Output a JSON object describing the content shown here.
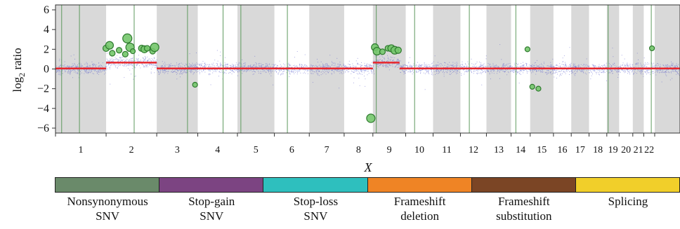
{
  "chart_data": {
    "type": "scatter",
    "title": "",
    "xlabel": "X",
    "ylabel_main": "log",
    "ylabel_sub": "2",
    "ylabel_tail": " ratio",
    "ylim": [
      -6.5,
      6.5
    ],
    "yticks": [
      6,
      4,
      2,
      0,
      -2,
      -4,
      -6
    ],
    "ytick_labels": [
      "6",
      "4",
      "2",
      "0",
      "−2",
      "−4",
      "−6"
    ],
    "chromosomes": [
      {
        "label": "1",
        "start": 0,
        "end": 7.4,
        "shaded": true
      },
      {
        "label": "2",
        "start": 7.4,
        "end": 14.8,
        "shaded": false
      },
      {
        "label": "3",
        "start": 14.8,
        "end": 20.8,
        "shaded": true
      },
      {
        "label": "4",
        "start": 20.8,
        "end": 26.6,
        "shaded": false
      },
      {
        "label": "5",
        "start": 26.6,
        "end": 32.0,
        "shaded": true
      },
      {
        "label": "6",
        "start": 32.0,
        "end": 37.1,
        "shaded": false
      },
      {
        "label": "7",
        "start": 37.1,
        "end": 42.2,
        "shaded": true
      },
      {
        "label": "8",
        "start": 42.2,
        "end": 46.4,
        "shaded": false
      },
      {
        "label": "9",
        "start": 46.4,
        "end": 51.2,
        "shaded": true
      },
      {
        "label": "10",
        "start": 51.2,
        "end": 55.2,
        "shaded": false
      },
      {
        "label": "11",
        "start": 55.2,
        "end": 59.2,
        "shaded": true
      },
      {
        "label": "12",
        "start": 59.2,
        "end": 63.0,
        "shaded": false
      },
      {
        "label": "13",
        "start": 63.0,
        "end": 66.6,
        "shaded": true
      },
      {
        "label": "14",
        "start": 66.6,
        "end": 69.4,
        "shaded": false
      },
      {
        "label": "15",
        "start": 69.4,
        "end": 72.8,
        "shaded": true
      },
      {
        "label": "16",
        "start": 72.8,
        "end": 75.4,
        "shaded": false
      },
      {
        "label": "17",
        "start": 75.4,
        "end": 78.0,
        "shaded": true
      },
      {
        "label": "18",
        "start": 78.0,
        "end": 80.6,
        "shaded": false
      },
      {
        "label": "19",
        "start": 80.6,
        "end": 82.4,
        "shaded": true
      },
      {
        "label": "20",
        "start": 82.4,
        "end": 84.4,
        "shaded": false
      },
      {
        "label": "21",
        "start": 84.4,
        "end": 86.0,
        "shaded": true
      },
      {
        "label": "22",
        "start": 86.0,
        "end": 87.6,
        "shaded": false
      },
      {
        "label": "",
        "start": 87.6,
        "end": 91.3,
        "shaded": true
      }
    ],
    "segments": [
      {
        "x0": 0,
        "x1": 7.4,
        "y": 0.05
      },
      {
        "x0": 7.4,
        "x1": 14.8,
        "y": 0.65
      },
      {
        "x0": 14.8,
        "x1": 46.4,
        "y": 0.05
      },
      {
        "x0": 46.4,
        "x1": 50.3,
        "y": 0.65
      },
      {
        "x0": 50.3,
        "x1": 91.3,
        "y": 0.05
      }
    ],
    "breakpoints": [
      0.9,
      3.5,
      11.5,
      19.3,
      24.5,
      27.1,
      33.9,
      46.9,
      52.5,
      60.5,
      67.3,
      80.8,
      87.1
    ],
    "variants": [
      {
        "x": 7.4,
        "y": 2.1,
        "size": 4.5
      },
      {
        "x": 7.9,
        "y": 2.4,
        "size": 5.5
      },
      {
        "x": 8.3,
        "y": 1.6,
        "size": 4
      },
      {
        "x": 9.3,
        "y": 1.9,
        "size": 4
      },
      {
        "x": 10.5,
        "y": 3.1,
        "size": 6.5
      },
      {
        "x": 10.9,
        "y": 2.2,
        "size": 6
      },
      {
        "x": 10.2,
        "y": 1.5,
        "size": 4
      },
      {
        "x": 11.3,
        "y": 1.8,
        "size": 3.5
      },
      {
        "x": 12.6,
        "y": 2.1,
        "size": 4.5
      },
      {
        "x": 13.0,
        "y": 2.0,
        "size": 5
      },
      {
        "x": 13.4,
        "y": 2.1,
        "size": 4
      },
      {
        "x": 14.2,
        "y": 1.8,
        "size": 4
      },
      {
        "x": 14.5,
        "y": 2.2,
        "size": 6
      },
      {
        "x": 20.4,
        "y": -1.6,
        "size": 3.5
      },
      {
        "x": 46.1,
        "y": -5.0,
        "size": 6
      },
      {
        "x": 46.7,
        "y": 2.2,
        "size": 5
      },
      {
        "x": 47.0,
        "y": 1.8,
        "size": 5.5
      },
      {
        "x": 47.8,
        "y": 1.75,
        "size": 4
      },
      {
        "x": 48.6,
        "y": 2.1,
        "size": 4
      },
      {
        "x": 49.1,
        "y": 2.1,
        "size": 5
      },
      {
        "x": 49.6,
        "y": 1.9,
        "size": 5.5
      },
      {
        "x": 50.1,
        "y": 1.9,
        "size": 4.5
      },
      {
        "x": 69.0,
        "y": 2.0,
        "size": 3.5
      },
      {
        "x": 69.7,
        "y": -1.8,
        "size": 3.5
      },
      {
        "x": 70.6,
        "y": -2.0,
        "size": 3.5
      },
      {
        "x": 87.2,
        "y": 2.1,
        "size": 3.5
      }
    ],
    "grid": false
  },
  "legend": {
    "items": [
      {
        "label": "Nonsynonymous\nSNV",
        "color": "#6a8a6a"
      },
      {
        "label": "Stop-gain\nSNV",
        "color": "#7c4482"
      },
      {
        "label": "Stop-loss\nSNV",
        "color": "#2ebfbe"
      },
      {
        "label": "Frameshift\ndeletion",
        "color": "#ef8425"
      },
      {
        "label": "Frameshift\nsubstitution",
        "color": "#7b4525"
      },
      {
        "label": "Splicing",
        "color": "#f1cf2a"
      }
    ]
  },
  "colors": {
    "band": "#d9d9d9",
    "noise": "#5558c8",
    "segment": "#e8262c",
    "breakpoint": "#5f9a5f",
    "variant_fill": "#74c66c",
    "variant_edge": "#2f7a2f",
    "axis": "#333333"
  }
}
